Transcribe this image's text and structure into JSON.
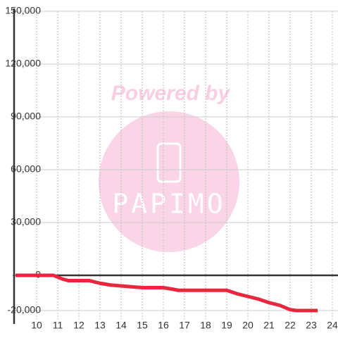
{
  "chart_data": {
    "type": "line",
    "x": [
      9,
      10.8,
      11.2,
      11.5,
      12.5,
      13,
      13.5,
      14,
      14.5,
      15,
      16,
      16.5,
      16.7,
      17,
      18,
      19,
      19.5,
      20,
      20.5,
      21,
      21.5,
      22,
      22.3,
      23.3
    ],
    "values": [
      0,
      0,
      -2000,
      -3000,
      -3000,
      -4500,
      -5500,
      -6000,
      -6500,
      -7000,
      -7000,
      -8000,
      -8500,
      -8500,
      -8500,
      -8500,
      -10500,
      -12000,
      -13500,
      -15500,
      -17000,
      -19500,
      -20000,
      -20000
    ],
    "color": "#e8273f",
    "xlim": [
      9,
      24.2
    ],
    "xticks": [
      10,
      11,
      12,
      13,
      14,
      15,
      16,
      17,
      18,
      19,
      20,
      21,
      22,
      23,
      24
    ],
    "ylim": [
      -25000,
      150000
    ],
    "yticks": [
      {
        "value": -20000,
        "label": "-20,000"
      },
      0,
      {
        "value": 30000,
        "label": "30,000"
      },
      {
        "value": 60000,
        "label": "60,000"
      },
      {
        "value": 90000,
        "label": "90,000"
      },
      {
        "value": 120000,
        "label": "120,000"
      },
      {
        "value": 150000,
        "label": "150,000"
      }
    ],
    "grid": true
  },
  "watermark": {
    "line1": "Powered by",
    "line2": "PAPIMO"
  }
}
